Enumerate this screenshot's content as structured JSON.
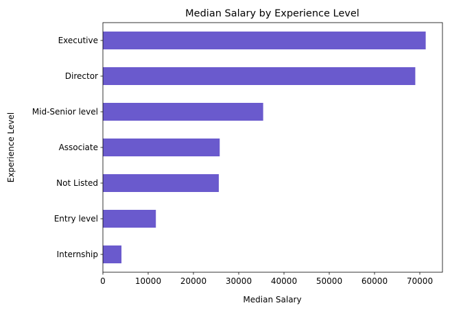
{
  "chart_data": {
    "type": "bar",
    "orientation": "horizontal",
    "title": "Median Salary by Experience Level",
    "xlabel": "Median Salary",
    "ylabel": "Experience Level",
    "categories": [
      "Executive",
      "Director",
      "Mid-Senior level",
      "Associate",
      "Not Listed",
      "Entry level",
      "Internship"
    ],
    "values": [
      71300,
      69000,
      35400,
      25800,
      25600,
      11700,
      4100
    ],
    "xlim": [
      0,
      75000
    ],
    "xticks": [
      0,
      10000,
      20000,
      30000,
      40000,
      50000,
      60000,
      70000
    ],
    "xtick_labels": [
      "0",
      "10000",
      "20000",
      "30000",
      "40000",
      "50000",
      "60000",
      "70000"
    ],
    "bar_color": "#6a5acd",
    "grid": false,
    "legend": "none"
  }
}
